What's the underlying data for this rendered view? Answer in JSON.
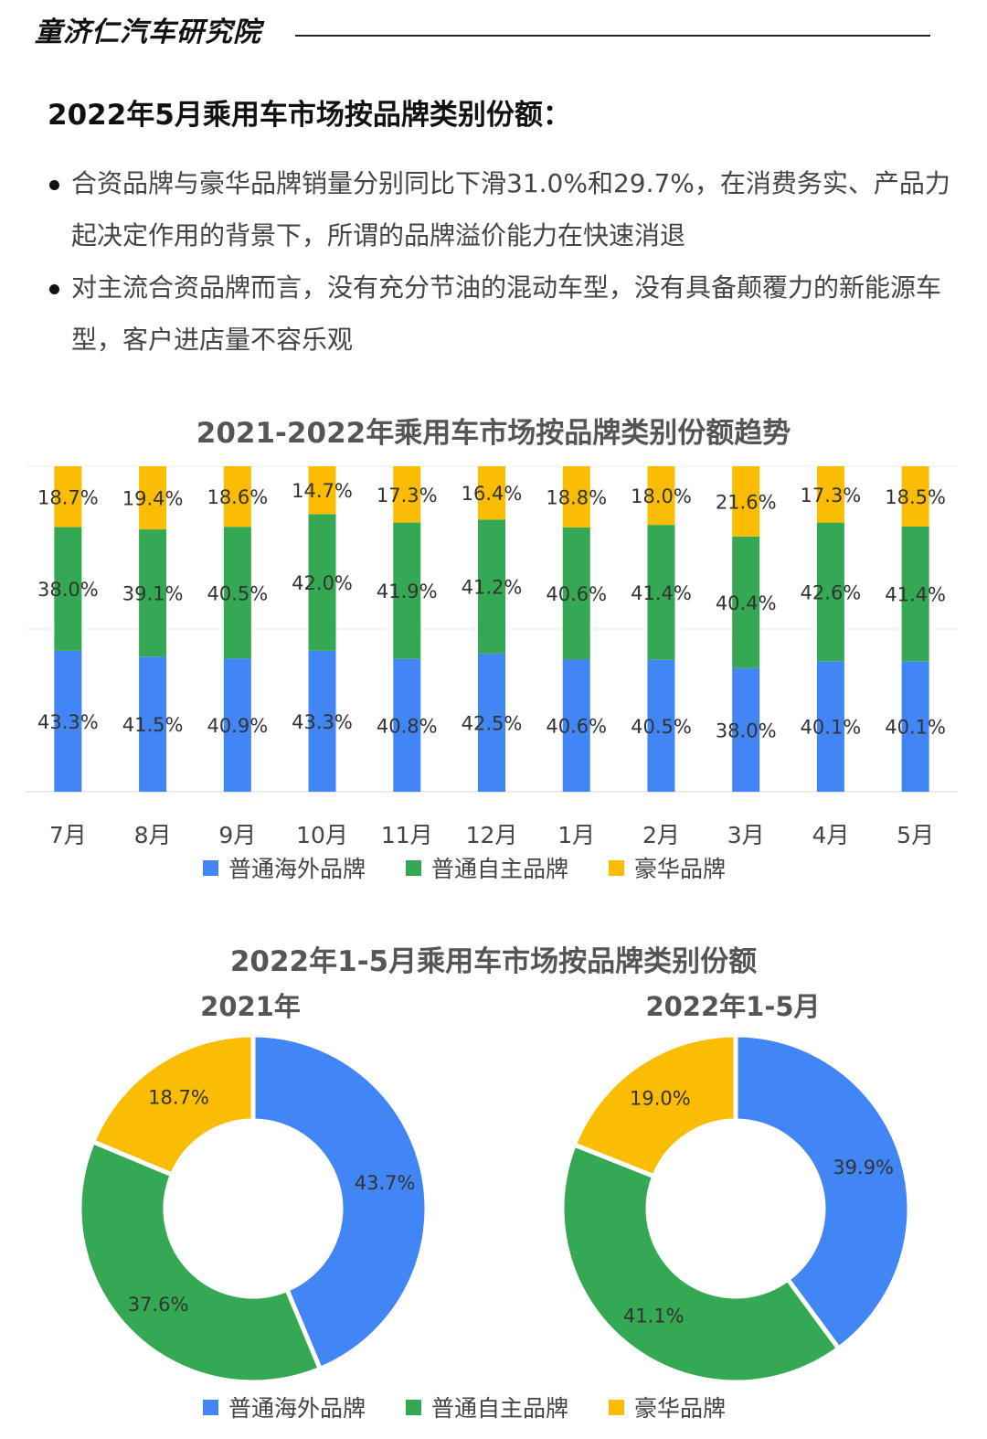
{
  "header": {
    "brand": "童济仁汽车研究院"
  },
  "section_title": "2022年5月乘用车市场按品牌类别份额：",
  "bullets": [
    "合资品牌与豪华品牌销量分别同比下滑31.0%和29.7%，在消费务实、产品力起决定作用的背景下，所谓的品牌溢价能力在快速消退",
    "对主流合资品牌而言，没有充分节油的混动车型，没有具备颠覆力的新能源车型，客户进店量不容乐观"
  ],
  "colors": {
    "overseas": "#4285F4",
    "domestic": "#34A853",
    "luxury": "#FBBC04"
  },
  "chart_data": [
    {
      "type": "bar",
      "stacked": true,
      "percent": true,
      "title": "2021-2022年乘用车市场按品牌类别份额趋势",
      "categories": [
        "7月",
        "8月",
        "9月",
        "10月",
        "11月",
        "12月",
        "1月",
        "2月",
        "3月",
        "4月",
        "5月"
      ],
      "series": [
        {
          "name": "普通海外品牌",
          "values": [
            43.3,
            41.5,
            40.9,
            43.3,
            40.8,
            42.5,
            40.6,
            40.5,
            38.0,
            40.1,
            40.1
          ],
          "labels": [
            "43.3%",
            "41.5%",
            "40.9%",
            "43.3%",
            "40.8%",
            "42.5%",
            "40.6%",
            "40.5%",
            "38.0%",
            "40.1%",
            "40.1%"
          ]
        },
        {
          "name": "普通自主品牌",
          "values": [
            38.0,
            39.1,
            40.5,
            42.0,
            41.9,
            41.2,
            40.6,
            41.4,
            40.4,
            42.6,
            41.4
          ],
          "labels": [
            "38.0%",
            "39.1%",
            "40.5%",
            "42.0%",
            "41.9%",
            "41.2%",
            "40.6%",
            "41.4%",
            "40.4%",
            "42.6%",
            "41.4%"
          ]
        },
        {
          "name": "豪华品牌",
          "values": [
            18.7,
            19.4,
            18.6,
            14.7,
            17.3,
            16.4,
            18.8,
            18.0,
            21.6,
            17.3,
            18.5
          ],
          "labels": [
            "18.7%",
            "19.4%",
            "18.6%",
            "14.7%",
            "17.3%",
            "16.4%",
            "18.8%",
            "18.0%",
            "21.6%",
            "17.3%",
            "18.5%"
          ]
        }
      ],
      "legend": [
        "普通海外品牌",
        "普通自主品牌",
        "豪华品牌"
      ],
      "legend_position": "bottom"
    },
    {
      "type": "pie",
      "donut": true,
      "title": "2022年1-5月乘用车市场按品牌类别份额",
      "charts": [
        {
          "title": "2021年",
          "slices": [
            {
              "name": "普通海外品牌",
              "value": 43.7,
              "label": "43.7%"
            },
            {
              "name": "普通自主品牌",
              "value": 37.6,
              "label": "37.6%"
            },
            {
              "name": "豪华品牌",
              "value": 18.7,
              "label": "18.7%"
            }
          ]
        },
        {
          "title": "2022年1-5月",
          "slices": [
            {
              "name": "普通海外品牌",
              "value": 39.9,
              "label": "39.9%"
            },
            {
              "name": "普通自主品牌",
              "value": 41.1,
              "label": "41.1%"
            },
            {
              "name": "豪华品牌",
              "value": 19.0,
              "label": "19.0%"
            }
          ]
        }
      ],
      "legend": [
        "普通海外品牌",
        "普通自主品牌",
        "豪华品牌"
      ],
      "legend_position": "bottom"
    }
  ]
}
